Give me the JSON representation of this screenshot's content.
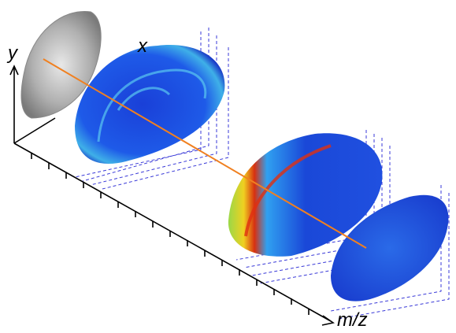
{
  "axes": {
    "y": "y",
    "x": "x",
    "mz": "m/z"
  }
}
